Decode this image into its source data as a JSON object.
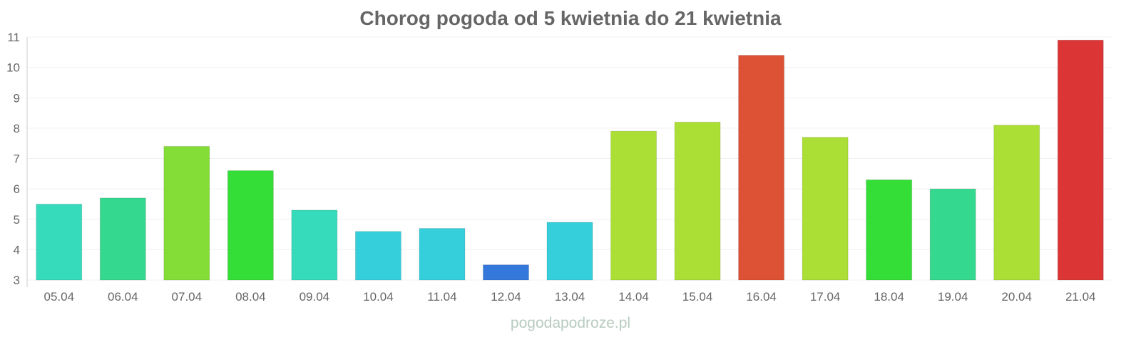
{
  "chart_data": {
    "type": "bar",
    "title": "Chorog pogoda od 5 kwietnia do 21 kwietnia",
    "xlabel": "",
    "ylabel": "",
    "ylim": [
      3,
      11
    ],
    "yticks": [
      3,
      4,
      5,
      6,
      7,
      8,
      9,
      10,
      11
    ],
    "grid": true,
    "categories": [
      "05.04",
      "06.04",
      "07.04",
      "08.04",
      "09.04",
      "10.04",
      "11.04",
      "12.04",
      "13.04",
      "14.04",
      "15.04",
      "16.04",
      "17.04",
      "18.04",
      "19.04",
      "20.04",
      "21.04"
    ],
    "values": [
      5.5,
      5.7,
      7.4,
      6.6,
      5.3,
      4.6,
      4.7,
      3.5,
      4.9,
      7.9,
      8.2,
      10.4,
      7.7,
      6.3,
      6.0,
      8.1,
      10.9
    ],
    "colors": [
      "#35dbbb",
      "#35d88f",
      "#84dd37",
      "#35dd37",
      "#35dbbb",
      "#35cfdb",
      "#35cfdb",
      "#3578db",
      "#35cfdb",
      "#acdf35",
      "#acdf35",
      "#dd5135",
      "#acdf35",
      "#35dd37",
      "#35d88f",
      "#acdf35",
      "#db3535"
    ]
  },
  "footer": "pogodapodroze.pl"
}
